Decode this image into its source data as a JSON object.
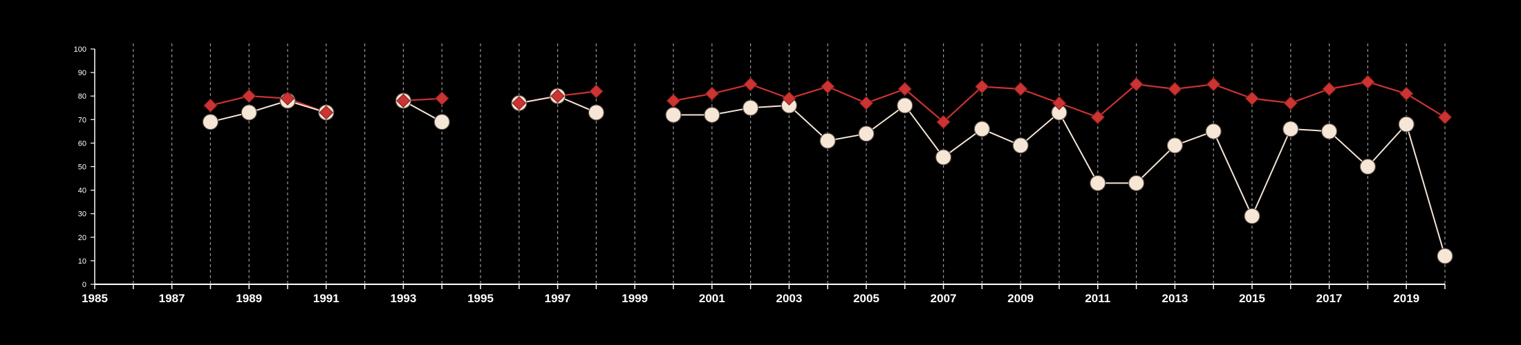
{
  "chart_data": {
    "type": "line",
    "title": "",
    "xlabel": "",
    "ylabel": "",
    "xlim": [
      1985,
      2020
    ],
    "ylim": [
      0,
      100
    ],
    "x_ticks": [
      "1985",
      "1987",
      "1989",
      "1991",
      "1993",
      "1995",
      "1997",
      "1999",
      "2001",
      "2003",
      "2005",
      "2007",
      "2009",
      "2011",
      "2013",
      "2015",
      "2017",
      "2019"
    ],
    "y_ticks": [
      "0",
      "10",
      "20",
      "30",
      "40",
      "50",
      "60",
      "70",
      "80",
      "90",
      "100"
    ],
    "vertical_gridlines": "dashed, one per year",
    "legend": "none",
    "series": [
      {
        "marker": "diamond",
        "color": "#cc3333",
        "points": [
          [
            1988,
            76
          ],
          [
            1989,
            80
          ],
          [
            1990,
            79
          ],
          [
            1991,
            73
          ],
          [
            1992,
            null
          ],
          [
            1993,
            78
          ],
          [
            1994,
            79
          ],
          [
            1995,
            null
          ],
          [
            1996,
            77
          ],
          [
            1997,
            80
          ],
          [
            1998,
            82
          ],
          [
            1999,
            null
          ],
          [
            2000,
            78
          ],
          [
            2001,
            81
          ],
          [
            2002,
            85
          ],
          [
            2003,
            79
          ],
          [
            2004,
            84
          ],
          [
            2005,
            77
          ],
          [
            2006,
            83
          ],
          [
            2007,
            69
          ],
          [
            2008,
            84
          ],
          [
            2009,
            83
          ],
          [
            2010,
            77
          ],
          [
            2011,
            71
          ],
          [
            2012,
            85
          ],
          [
            2013,
            83
          ],
          [
            2014,
            85
          ],
          [
            2015,
            79
          ],
          [
            2016,
            77
          ],
          [
            2017,
            83
          ],
          [
            2018,
            86
          ],
          [
            2019,
            81
          ],
          [
            2020,
            71
          ]
        ]
      },
      {
        "marker": "circle",
        "color": "#f5e6d6",
        "points": [
          [
            1988,
            69
          ],
          [
            1989,
            73
          ],
          [
            1990,
            78
          ],
          [
            1991,
            73
          ],
          [
            1992,
            null
          ],
          [
            1993,
            78
          ],
          [
            1994,
            69
          ],
          [
            1995,
            null
          ],
          [
            1996,
            77
          ],
          [
            1997,
            80
          ],
          [
            1998,
            73
          ],
          [
            1999,
            null
          ],
          [
            2000,
            72
          ],
          [
            2001,
            72
          ],
          [
            2002,
            75
          ],
          [
            2003,
            76
          ],
          [
            2004,
            61
          ],
          [
            2005,
            64
          ],
          [
            2006,
            76
          ],
          [
            2007,
            54
          ],
          [
            2008,
            66
          ],
          [
            2009,
            59
          ],
          [
            2010,
            73
          ],
          [
            2011,
            43
          ],
          [
            2012,
            43
          ],
          [
            2013,
            59
          ],
          [
            2014,
            65
          ],
          [
            2015,
            29
          ],
          [
            2016,
            66
          ],
          [
            2017,
            65
          ],
          [
            2018,
            50
          ],
          [
            2019,
            68
          ],
          [
            2020,
            12
          ]
        ]
      }
    ]
  }
}
